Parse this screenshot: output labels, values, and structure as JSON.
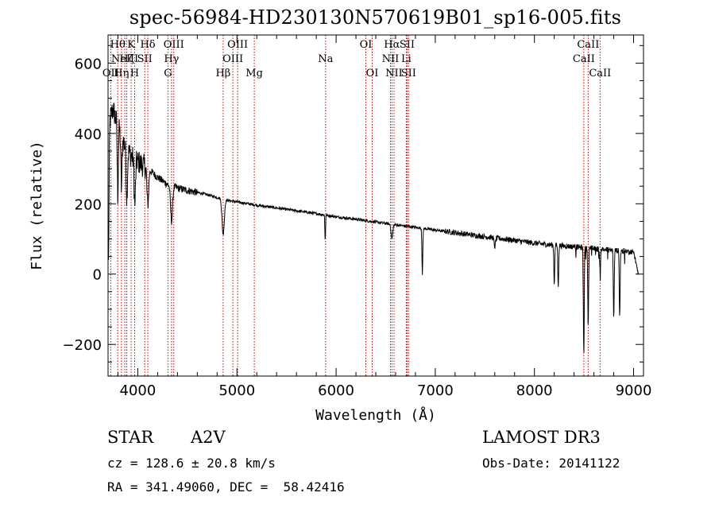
{
  "chart_data": {
    "type": "line",
    "title": "spec-56984-HD230130N570619B01_sp16-005.fits",
    "xlabel": "Wavelength (Å)",
    "ylabel": "Flux (relative)",
    "xlim": [
      3700,
      9100
    ],
    "ylim": [
      -290,
      680
    ],
    "xticks": [
      4000,
      5000,
      6000,
      7000,
      8000,
      9000
    ],
    "yticks": [
      -200,
      0,
      200,
      400,
      600
    ],
    "grid": false,
    "line_color": "#000000",
    "marker_color": "#cc0000",
    "continuum": [
      [
        3705,
        230
      ],
      [
        3720,
        440
      ],
      [
        3750,
        470
      ],
      [
        3800,
        420
      ],
      [
        3850,
        380
      ],
      [
        3900,
        350
      ],
      [
        3950,
        330
      ],
      [
        4000,
        320
      ],
      [
        4100,
        300
      ],
      [
        4200,
        275
      ],
      [
        4300,
        255
      ],
      [
        4400,
        245
      ],
      [
        4500,
        238
      ],
      [
        4600,
        232
      ],
      [
        4700,
        226
      ],
      [
        4800,
        218
      ],
      [
        4900,
        210
      ],
      [
        5000,
        205
      ],
      [
        5200,
        196
      ],
      [
        5400,
        188
      ],
      [
        5600,
        180
      ],
      [
        5800,
        172
      ],
      [
        6000,
        163
      ],
      [
        6200,
        156
      ],
      [
        6400,
        148
      ],
      [
        6600,
        140
      ],
      [
        6800,
        133
      ],
      [
        7000,
        125
      ],
      [
        7200,
        118
      ],
      [
        7400,
        110
      ],
      [
        7600,
        103
      ],
      [
        7800,
        96
      ],
      [
        8000,
        88
      ],
      [
        8200,
        82
      ],
      [
        8400,
        78
      ],
      [
        8600,
        72
      ],
      [
        8800,
        68
      ],
      [
        9000,
        62
      ],
      [
        9050,
        0
      ]
    ],
    "absorption_features": [
      {
        "x": 3705,
        "depth": 200,
        "width": 5
      },
      {
        "x": 3798,
        "depth": 200,
        "width": 7
      },
      {
        "x": 3835,
        "depth": 150,
        "width": 8
      },
      {
        "x": 3889,
        "depth": 140,
        "width": 9
      },
      {
        "x": 3970,
        "depth": 130,
        "width": 10
      },
      {
        "x": 4101,
        "depth": 110,
        "width": 12
      },
      {
        "x": 4340,
        "depth": 100,
        "width": 14
      },
      {
        "x": 4861,
        "depth": 100,
        "width": 16
      },
      {
        "x": 5890,
        "depth": 70,
        "width": 5
      },
      {
        "x": 6563,
        "depth": 40,
        "width": 12
      },
      {
        "x": 6870,
        "depth": 130,
        "width": 6
      },
      {
        "x": 7600,
        "depth": 25,
        "width": 10
      },
      {
        "x": 8200,
        "depth": 110,
        "width": 6
      },
      {
        "x": 8240,
        "depth": 120,
        "width": 6
      },
      {
        "x": 8498,
        "depth": 300,
        "width": 6
      },
      {
        "x": 8542,
        "depth": 220,
        "width": 6
      },
      {
        "x": 8662,
        "depth": 60,
        "width": 6
      },
      {
        "x": 8800,
        "depth": 200,
        "width": 6
      },
      {
        "x": 8860,
        "depth": 190,
        "width": 6
      }
    ],
    "line_markers": [
      {
        "x": 3727,
        "label": "OII",
        "row": 2
      },
      {
        "x": 3798,
        "label": "Hθ",
        "row": 0
      },
      {
        "x": 3835,
        "label": "Hη",
        "row": 2
      },
      {
        "x": 3869,
        "label": "NeIII",
        "row": 1
      },
      {
        "x": 3889,
        "label": "Hζ",
        "row": 1
      },
      {
        "x": 3933,
        "label": "K",
        "row": 0
      },
      {
        "x": 3968,
        "label": "H",
        "row": 2
      },
      {
        "x": 4070,
        "label": "SII",
        "row": 1
      },
      {
        "x": 4101,
        "label": "Hδ",
        "row": 0
      },
      {
        "x": 4304,
        "label": "G",
        "row": 2
      },
      {
        "x": 4340,
        "label": "Hγ",
        "row": 1
      },
      {
        "x": 4363,
        "label": "OIII",
        "row": 0
      },
      {
        "x": 4861,
        "label": "Hβ",
        "row": 2
      },
      {
        "x": 4959,
        "label": "OIII",
        "row": 1
      },
      {
        "x": 5007,
        "label": "OIII",
        "row": 0
      },
      {
        "x": 5175,
        "label": "Mg",
        "row": 2
      },
      {
        "x": 5894,
        "label": "Na",
        "row": 1
      },
      {
        "x": 6300,
        "label": "OI",
        "row": 0
      },
      {
        "x": 6364,
        "label": "OI",
        "row": 2
      },
      {
        "x": 6548,
        "label": "NII",
        "row": 1
      },
      {
        "x": 6563,
        "label": "Hα",
        "row": 0
      },
      {
        "x": 6584,
        "label": "NII",
        "row": 2
      },
      {
        "x": 6708,
        "label": "Li",
        "row": 1
      },
      {
        "x": 6716,
        "label": "SII",
        "row": 0
      },
      {
        "x": 6731,
        "label": "SII",
        "row": 2
      },
      {
        "x": 8498,
        "label": "CaII",
        "row": 1
      },
      {
        "x": 8542,
        "label": "CaII",
        "row": 0
      },
      {
        "x": 8662,
        "label": "CaII",
        "row": 2
      }
    ]
  },
  "info": {
    "object_class": "STAR",
    "subclass": "A2V",
    "survey": "LAMOST DR3",
    "cz": "cz = 128.6 ± 20.8 km/s",
    "obs_date": "Obs-Date: 20141122",
    "coords": "RA = 341.49060, DEC =  58.42416"
  }
}
